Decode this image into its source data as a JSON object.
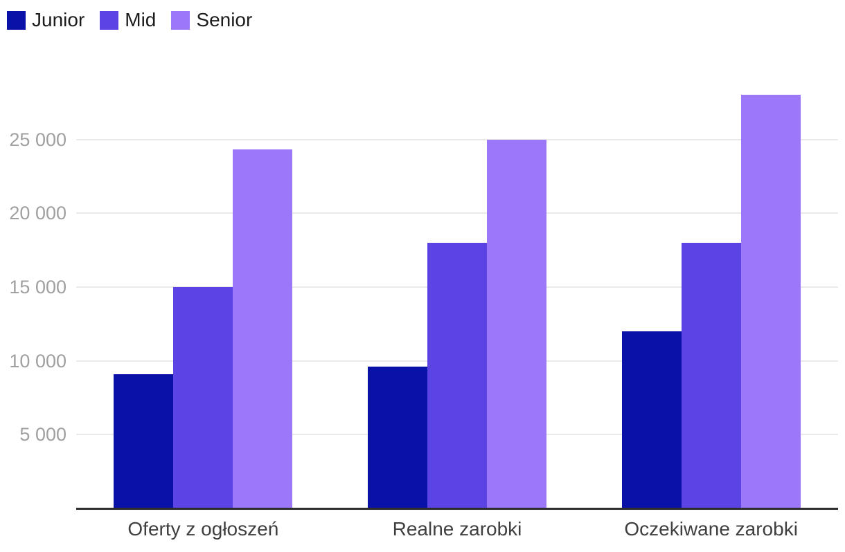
{
  "chart_data": {
    "type": "bar",
    "title": "",
    "categories": [
      "Oferty z ogłoszeń",
      "Realne zarobki",
      "Oczekiwane zarobki"
    ],
    "series": [
      {
        "name": "Junior",
        "color": "#0a11a7",
        "values": [
          9100,
          9600,
          12000
        ]
      },
      {
        "name": "Mid",
        "color": "#5b43e4",
        "values": [
          15000,
          18000,
          18000
        ]
      },
      {
        "name": "Senior",
        "color": "#9c78f8",
        "values": [
          24300,
          25000,
          28000
        ]
      }
    ],
    "y_axis": {
      "tick_step": 5000,
      "range": [
        0,
        28500
      ],
      "ticks": [
        {
          "value": 5000,
          "label": "5 000"
        },
        {
          "value": 10000,
          "label": "10 000"
        },
        {
          "value": 15000,
          "label": "15 000"
        },
        {
          "value": 20000,
          "label": "20 000"
        },
        {
          "value": 25000,
          "label": "25 000"
        }
      ]
    },
    "xlabel": "",
    "ylabel": "",
    "legend_position": "top-left",
    "grid": "horizontal",
    "styles": {
      "background": "#ffffff",
      "grid_color": "#e9e9e9",
      "axis_line_color": "#2d2d2d",
      "tick_label_color": "#a0a0a0",
      "category_label_color": "#3f3f3f",
      "legend_text_color": "#1c1c1c"
    }
  }
}
